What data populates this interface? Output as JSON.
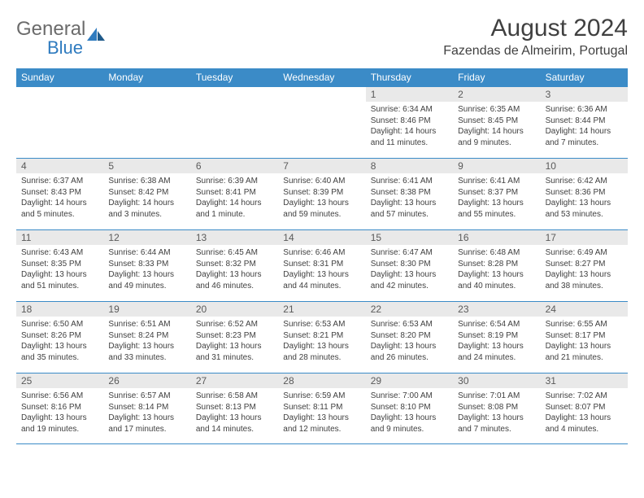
{
  "logo": {
    "text1": "General",
    "text2": "Blue"
  },
  "title": "August 2024",
  "location": "Fazendas de Almeirim, Portugal",
  "colors": {
    "header_bg": "#3b8bc7",
    "header_fg": "#ffffff",
    "daynum_bg": "#e9e9e9",
    "border": "#3b8bc7",
    "logo_gray": "#6b6b6b",
    "logo_blue": "#2f7bbf",
    "text": "#404040"
  },
  "dow": [
    "Sunday",
    "Monday",
    "Tuesday",
    "Wednesday",
    "Thursday",
    "Friday",
    "Saturday"
  ],
  "sunrise_prefix": "Sunrise: ",
  "sunset_prefix": "Sunset: ",
  "daylight_prefix": "Daylight: ",
  "days": [
    {
      "n": "",
      "blank": true
    },
    {
      "n": "",
      "blank": true
    },
    {
      "n": "",
      "blank": true
    },
    {
      "n": "",
      "blank": true
    },
    {
      "n": "1",
      "sr": "6:34 AM",
      "ss": "8:46 PM",
      "dl": "14 hours and 11 minutes."
    },
    {
      "n": "2",
      "sr": "6:35 AM",
      "ss": "8:45 PM",
      "dl": "14 hours and 9 minutes."
    },
    {
      "n": "3",
      "sr": "6:36 AM",
      "ss": "8:44 PM",
      "dl": "14 hours and 7 minutes."
    },
    {
      "n": "4",
      "sr": "6:37 AM",
      "ss": "8:43 PM",
      "dl": "14 hours and 5 minutes."
    },
    {
      "n": "5",
      "sr": "6:38 AM",
      "ss": "8:42 PM",
      "dl": "14 hours and 3 minutes."
    },
    {
      "n": "6",
      "sr": "6:39 AM",
      "ss": "8:41 PM",
      "dl": "14 hours and 1 minute."
    },
    {
      "n": "7",
      "sr": "6:40 AM",
      "ss": "8:39 PM",
      "dl": "13 hours and 59 minutes."
    },
    {
      "n": "8",
      "sr": "6:41 AM",
      "ss": "8:38 PM",
      "dl": "13 hours and 57 minutes."
    },
    {
      "n": "9",
      "sr": "6:41 AM",
      "ss": "8:37 PM",
      "dl": "13 hours and 55 minutes."
    },
    {
      "n": "10",
      "sr": "6:42 AM",
      "ss": "8:36 PM",
      "dl": "13 hours and 53 minutes."
    },
    {
      "n": "11",
      "sr": "6:43 AM",
      "ss": "8:35 PM",
      "dl": "13 hours and 51 minutes."
    },
    {
      "n": "12",
      "sr": "6:44 AM",
      "ss": "8:33 PM",
      "dl": "13 hours and 49 minutes."
    },
    {
      "n": "13",
      "sr": "6:45 AM",
      "ss": "8:32 PM",
      "dl": "13 hours and 46 minutes."
    },
    {
      "n": "14",
      "sr": "6:46 AM",
      "ss": "8:31 PM",
      "dl": "13 hours and 44 minutes."
    },
    {
      "n": "15",
      "sr": "6:47 AM",
      "ss": "8:30 PM",
      "dl": "13 hours and 42 minutes."
    },
    {
      "n": "16",
      "sr": "6:48 AM",
      "ss": "8:28 PM",
      "dl": "13 hours and 40 minutes."
    },
    {
      "n": "17",
      "sr": "6:49 AM",
      "ss": "8:27 PM",
      "dl": "13 hours and 38 minutes."
    },
    {
      "n": "18",
      "sr": "6:50 AM",
      "ss": "8:26 PM",
      "dl": "13 hours and 35 minutes."
    },
    {
      "n": "19",
      "sr": "6:51 AM",
      "ss": "8:24 PM",
      "dl": "13 hours and 33 minutes."
    },
    {
      "n": "20",
      "sr": "6:52 AM",
      "ss": "8:23 PM",
      "dl": "13 hours and 31 minutes."
    },
    {
      "n": "21",
      "sr": "6:53 AM",
      "ss": "8:21 PM",
      "dl": "13 hours and 28 minutes."
    },
    {
      "n": "22",
      "sr": "6:53 AM",
      "ss": "8:20 PM",
      "dl": "13 hours and 26 minutes."
    },
    {
      "n": "23",
      "sr": "6:54 AM",
      "ss": "8:19 PM",
      "dl": "13 hours and 24 minutes."
    },
    {
      "n": "24",
      "sr": "6:55 AM",
      "ss": "8:17 PM",
      "dl": "13 hours and 21 minutes."
    },
    {
      "n": "25",
      "sr": "6:56 AM",
      "ss": "8:16 PM",
      "dl": "13 hours and 19 minutes."
    },
    {
      "n": "26",
      "sr": "6:57 AM",
      "ss": "8:14 PM",
      "dl": "13 hours and 17 minutes."
    },
    {
      "n": "27",
      "sr": "6:58 AM",
      "ss": "8:13 PM",
      "dl": "13 hours and 14 minutes."
    },
    {
      "n": "28",
      "sr": "6:59 AM",
      "ss": "8:11 PM",
      "dl": "13 hours and 12 minutes."
    },
    {
      "n": "29",
      "sr": "7:00 AM",
      "ss": "8:10 PM",
      "dl": "13 hours and 9 minutes."
    },
    {
      "n": "30",
      "sr": "7:01 AM",
      "ss": "8:08 PM",
      "dl": "13 hours and 7 minutes."
    },
    {
      "n": "31",
      "sr": "7:02 AM",
      "ss": "8:07 PM",
      "dl": "13 hours and 4 minutes."
    }
  ]
}
